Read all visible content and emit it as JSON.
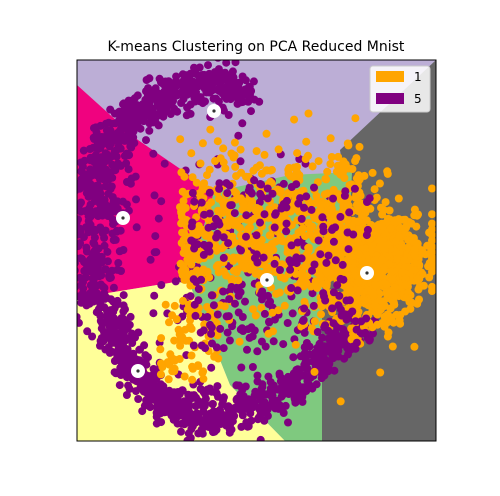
{
  "chart_data": {
    "type": "scatter",
    "title": "K-means Clustering on PCA Reduced Mnist",
    "xlabel": "",
    "ylabel": "",
    "axes_ticks": "none",
    "grid": false,
    "legend_placement": "top-right",
    "region_colors": {
      "top-lavender": "#bcaed6",
      "right-gray": "#666666",
      "left-magenta": "#f0027f",
      "center-green": "#7fc97f",
      "bottom-left-yellow": "#ffff99"
    },
    "series": [
      {
        "name": "1",
        "color": "#ffa500"
      },
      {
        "name": "5",
        "color": "#800080"
      }
    ],
    "centroids_count": 5,
    "centroid_marker": "white circle with dark center"
  }
}
